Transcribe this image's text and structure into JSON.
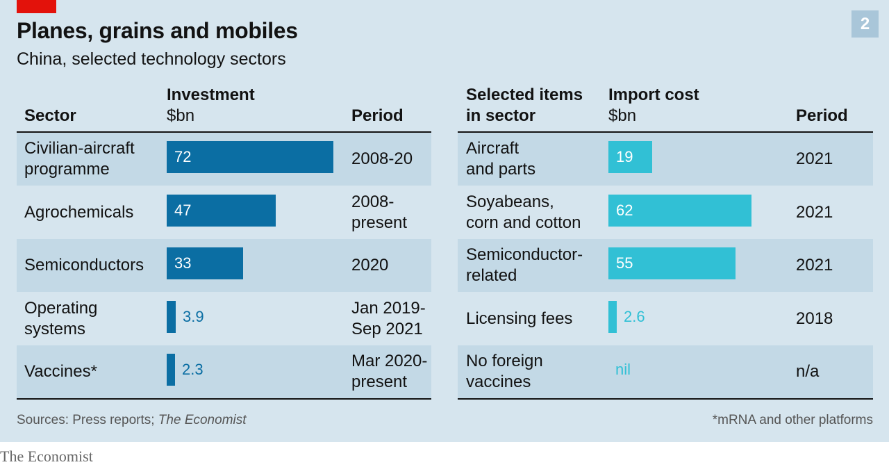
{
  "header": {
    "title": "Planes, grains and mobiles",
    "subtitle": "China, selected technology sectors",
    "chart_number": "2"
  },
  "footer": {
    "sources_prefix": "Sources: Press reports; ",
    "sources_italic": "The Economist",
    "note": "*mRNA and other platforms",
    "logo": "The Economist"
  },
  "colors": {
    "investment_bar": "#0b6ea3",
    "import_bar": "#31c0d5",
    "panel_background": "#d6e5ee",
    "row_shade": "#c3d9e6",
    "accent_red": "#e3120b"
  },
  "chart_data": {
    "type": "table",
    "left_table": {
      "columns": {
        "sector": "Sector",
        "investment_title": "Investment",
        "investment_unit": "$bn",
        "period": "Period"
      },
      "rows": [
        {
          "sector": "Civilian-aircraft\nprogramme",
          "value": 72,
          "value_label": "72",
          "period": "2008-20"
        },
        {
          "sector": "Agrochemicals",
          "value": 47,
          "value_label": "47",
          "period": "2008-\npresent"
        },
        {
          "sector": "Semiconductors",
          "value": 33,
          "value_label": "33",
          "period": "2020"
        },
        {
          "sector": "Operating\nsystems",
          "value": 3.9,
          "value_label": "3.9",
          "period": "Jan 2019-\nSep 2021"
        },
        {
          "sector": "Vaccines*",
          "value": 2.3,
          "value_label": "2.3",
          "period": "Mar 2020-\npresent"
        }
      ],
      "value_max": 72
    },
    "right_table": {
      "columns": {
        "items_line1": "Selected items",
        "items_line2": "in sector",
        "import_title": "Import cost",
        "import_unit": "$bn",
        "period": "Period"
      },
      "rows": [
        {
          "item": "Aircraft\nand parts",
          "value": 19,
          "value_label": "19",
          "period": "2021"
        },
        {
          "item": "Soyabeans,\ncorn and cotton",
          "value": 62,
          "value_label": "62",
          "period": "2021"
        },
        {
          "item": "Semiconductor-\nrelated",
          "value": 55,
          "value_label": "55",
          "period": "2021"
        },
        {
          "item": "Licensing fees",
          "value": 2.6,
          "value_label": "2.6",
          "period": "2018"
        },
        {
          "item": "No foreign\nvaccines",
          "value": null,
          "value_label": "nil",
          "period": "n/a"
        }
      ],
      "value_max": 62
    }
  }
}
